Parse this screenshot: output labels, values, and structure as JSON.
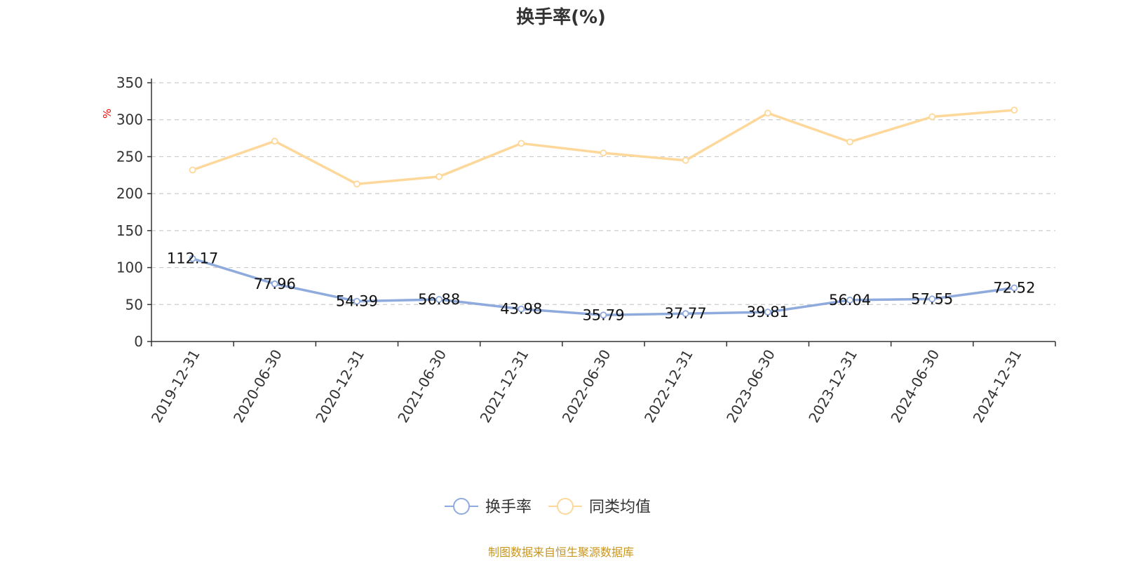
{
  "chart_data": {
    "type": "line",
    "title": "换手率(%)",
    "ylabel": "%",
    "ylim": [
      0,
      350
    ],
    "yticks": [
      0,
      50,
      100,
      150,
      200,
      250,
      300,
      350
    ],
    "grid": true,
    "legend_position": "bottom",
    "categories": [
      "2019-12-31",
      "2020-06-30",
      "2020-12-31",
      "2021-06-30",
      "2021-12-31",
      "2022-06-30",
      "2022-12-31",
      "2023-06-30",
      "2023-12-31",
      "2024-06-30",
      "2024-12-31"
    ],
    "series": [
      {
        "name": "换手率",
        "color": "#8faadc",
        "values": [
          112.17,
          77.96,
          54.39,
          56.88,
          43.98,
          35.79,
          37.77,
          39.81,
          56.04,
          57.55,
          72.52
        ],
        "labels": [
          "112.17",
          "77.96",
          "54.39",
          "56.88",
          "43.98",
          "35.79",
          "37.77",
          "39.81",
          "56.04",
          "57.55",
          "72.52"
        ]
      },
      {
        "name": "同类均值",
        "color": "#fdd89a",
        "values": [
          232,
          271,
          213,
          223,
          268,
          255,
          245,
          309,
          270,
          304,
          313
        ]
      }
    ]
  },
  "colors": {
    "unit": "#ff0000",
    "source": "#c8961e",
    "grid": "#cccccc",
    "axis": "#333333"
  },
  "source": "制图数据来自恒生聚源数据库"
}
